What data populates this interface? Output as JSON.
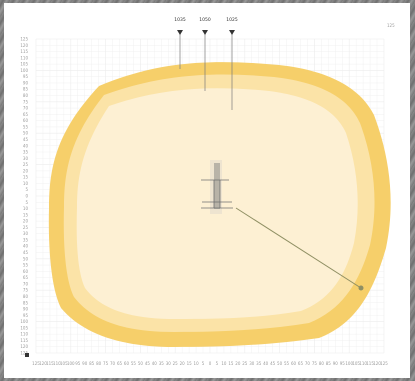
{
  "diagram": {
    "top_markers": [
      "1035",
      "1050",
      "1025"
    ],
    "x_ticks": [
      "125",
      "120",
      "115",
      "110",
      "105",
      "100",
      "95",
      "90",
      "85",
      "80",
      "75",
      "70",
      "65",
      "60",
      "55",
      "50",
      "45",
      "40",
      "35",
      "30",
      "25",
      "20",
      "15",
      "10",
      "5",
      "0",
      "5",
      "10",
      "15",
      "20",
      "25",
      "30",
      "35",
      "40",
      "45",
      "50",
      "55",
      "60",
      "65",
      "70",
      "75",
      "80",
      "85",
      "90",
      "95",
      "100",
      "105",
      "110",
      "115",
      "120",
      "125"
    ],
    "y_ticks": [
      "125",
      "120",
      "115",
      "110",
      "105",
      "100",
      "95",
      "90",
      "85",
      "80",
      "75",
      "70",
      "65",
      "60",
      "55",
      "50",
      "45",
      "40",
      "35",
      "30",
      "25",
      "20",
      "15",
      "10",
      "5",
      "0",
      "5",
      "10",
      "15",
      "20",
      "25",
      "30",
      "35",
      "40",
      "45",
      "50",
      "55",
      "60",
      "65",
      "70",
      "75",
      "80",
      "85",
      "90",
      "95",
      "100",
      "105",
      "110",
      "115",
      "120",
      "125"
    ],
    "corner_label": "125",
    "colors": {
      "outer_ring": "#f6cf6a",
      "middle_ring": "#fbe3a7",
      "inner_fill": "#fdf0d3",
      "diagonal_line": "#8f8f63"
    }
  }
}
